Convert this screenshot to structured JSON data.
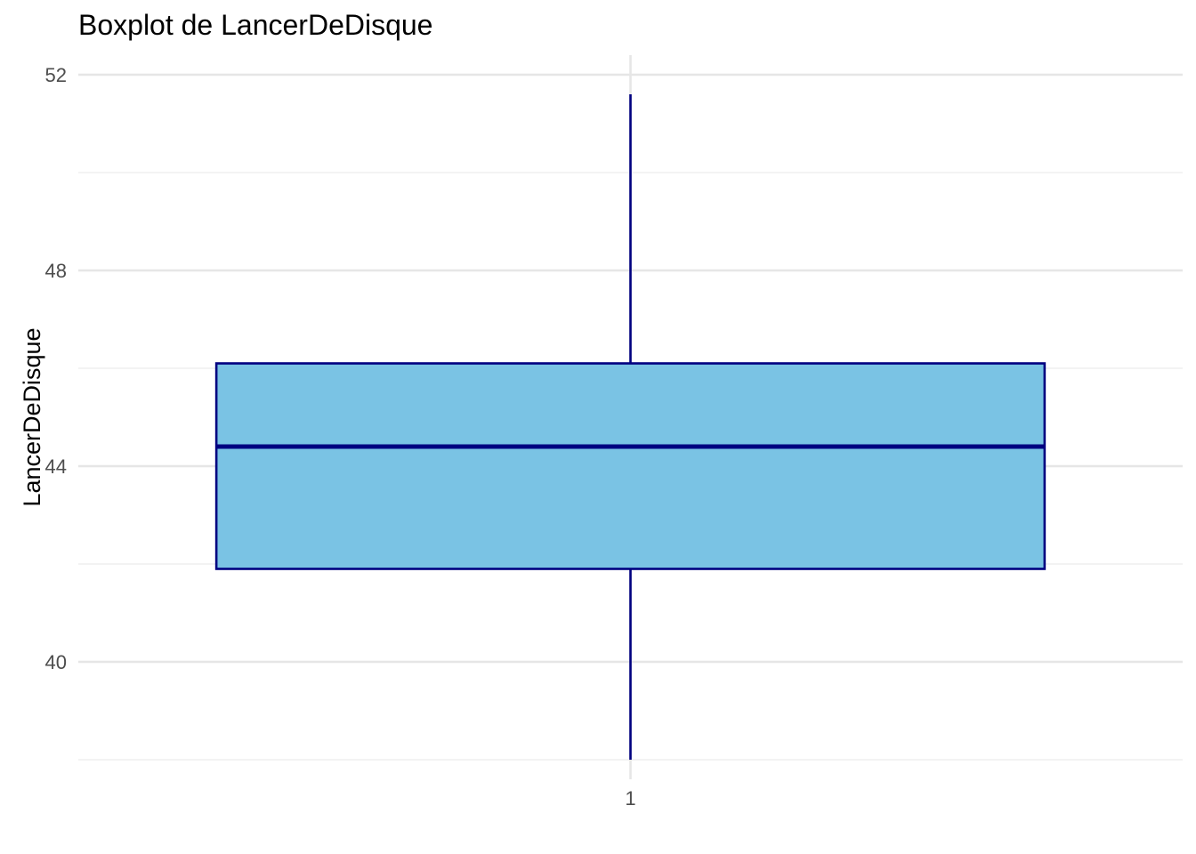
{
  "chart_data": {
    "type": "box",
    "title": "Boxplot de LancerDeDisque",
    "xlabel": "",
    "ylabel": "LancerDeDisque",
    "categories": [
      "1"
    ],
    "ylim": [
      37.6,
      52.4
    ],
    "y_ticks": [
      40,
      44,
      48,
      52
    ],
    "y_tick_labels": [
      "40",
      "44",
      "48",
      "52"
    ],
    "grid": true,
    "legend": "none",
    "boxes": [
      {
        "category": "1",
        "whisker_low": 38.0,
        "q1": 41.9,
        "median": 44.4,
        "q3": 46.1,
        "whisker_high": 51.6
      }
    ],
    "colors": {
      "fill": "#7ac3e4",
      "outline": "#000080",
      "grid_major": "#e6e6e6",
      "grid_minor": "#ececec"
    }
  }
}
